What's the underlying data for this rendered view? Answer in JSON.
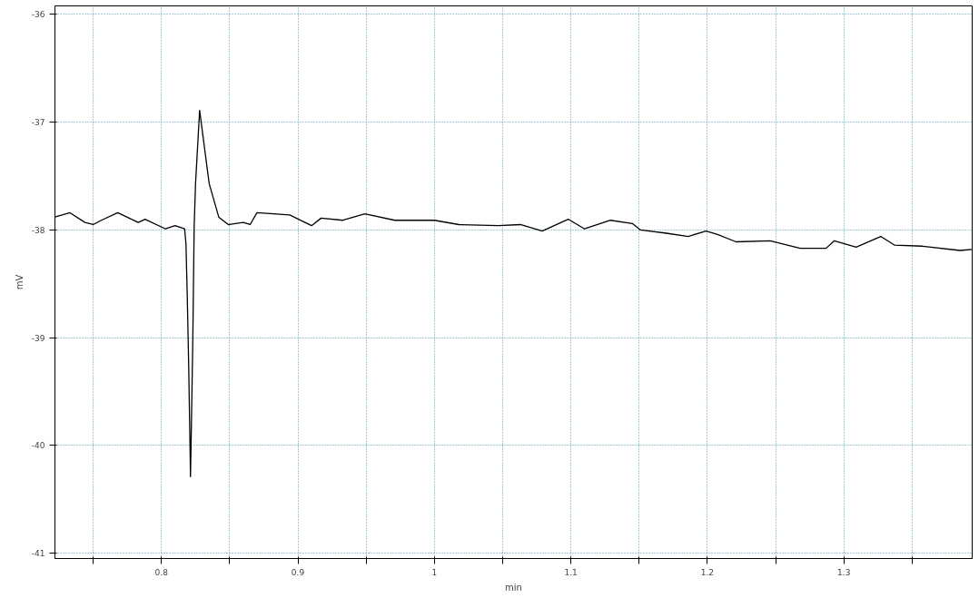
{
  "chart_data": {
    "type": "line",
    "xlabel": "min",
    "ylabel": "mV",
    "x": [
      0.722,
      0.733,
      0.744,
      0.75,
      0.756,
      0.768,
      0.783,
      0.788,
      0.803,
      0.81,
      0.817,
      0.818,
      0.819,
      0.82,
      0.821,
      0.8213,
      0.822,
      0.823,
      0.824,
      0.825,
      0.828,
      0.835,
      0.842,
      0.849,
      0.86,
      0.865,
      0.87,
      0.894,
      0.91,
      0.917,
      0.933,
      0.949,
      0.971,
      1.0,
      1.018,
      1.047,
      1.063,
      1.079,
      1.098,
      1.11,
      1.129,
      1.145,
      1.151,
      1.17,
      1.186,
      1.199,
      1.207,
      1.221,
      1.246,
      1.268,
      1.287,
      1.293,
      1.309,
      1.327,
      1.337,
      1.357,
      1.385,
      1.394
    ],
    "series": [
      {
        "color": "#000000",
        "values": [
          -37.88,
          -37.84,
          -37.93,
          -37.95,
          -37.91,
          -37.84,
          -37.93,
          -37.9,
          -37.99,
          -37.96,
          -37.99,
          -38.13,
          -38.65,
          -39.27,
          -40.04,
          -40.29,
          -39.79,
          -39.02,
          -37.97,
          -37.57,
          -36.89,
          -37.57,
          -37.88,
          -37.95,
          -37.93,
          -37.95,
          -37.84,
          -37.86,
          -37.96,
          -37.89,
          -37.91,
          -37.85,
          -37.91,
          -37.91,
          -37.95,
          -37.96,
          -37.95,
          -38.01,
          -37.9,
          -37.99,
          -37.91,
          -37.94,
          -38.0,
          -38.03,
          -38.06,
          -38.01,
          -38.04,
          -38.11,
          -38.1,
          -38.17,
          -38.17,
          -38.1,
          -38.16,
          -38.06,
          -38.14,
          -38.15,
          -38.19,
          -38.18
        ]
      }
    ],
    "xlim": [
      0.722,
      1.394
    ],
    "xticks": [
      {
        "value": 0.75,
        "label": null
      },
      0.8,
      {
        "value": 0.85,
        "label": null
      },
      0.9,
      {
        "value": 0.95,
        "label": null
      },
      1,
      {
        "value": 1.05,
        "label": null
      },
      1.1,
      {
        "value": 1.15,
        "label": null
      },
      1.2,
      {
        "value": 1.25,
        "label": null
      },
      1.3,
      {
        "value": 1.35,
        "label": null
      }
    ],
    "ylim": [
      -41.05,
      -35.92
    ],
    "yticks": [
      -36,
      -37,
      -38,
      -39,
      -40,
      -41
    ],
    "grid": true,
    "marker": "none",
    "line_style": "solid"
  }
}
